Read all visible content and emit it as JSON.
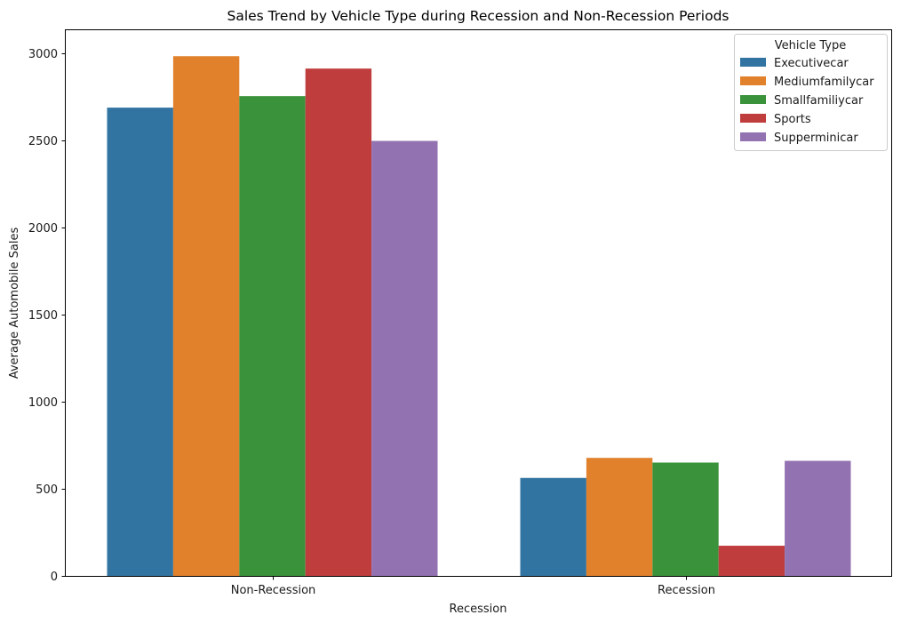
{
  "chart_data": {
    "type": "bar",
    "title": "Sales Trend by Vehicle Type during Recession and Non-Recession Periods",
    "xlabel": "Recession",
    "ylabel": "Average Automobile Sales",
    "categories": [
      "Non-Recession",
      "Recession"
    ],
    "ylim": [
      0,
      3130
    ],
    "yticks": [
      0,
      500,
      1000,
      1500,
      2000,
      2500,
      3000
    ],
    "grid": false,
    "legend": {
      "title": "Vehicle Type",
      "placement": "top-right"
    },
    "series": [
      {
        "name": "Executivecar",
        "color": "#3274a1",
        "values": [
          2686,
          562
        ]
      },
      {
        "name": "Mediumfamilycar",
        "color": "#e1812c",
        "values": [
          2981,
          677
        ]
      },
      {
        "name": "Smallfamiliycar",
        "color": "#3a923a",
        "values": [
          2752,
          650
        ]
      },
      {
        "name": "Sports",
        "color": "#c03d3e",
        "values": [
          2910,
          173
        ]
      },
      {
        "name": "Supperminicar",
        "color": "#9372b2",
        "values": [
          2495,
          660
        ]
      }
    ]
  }
}
